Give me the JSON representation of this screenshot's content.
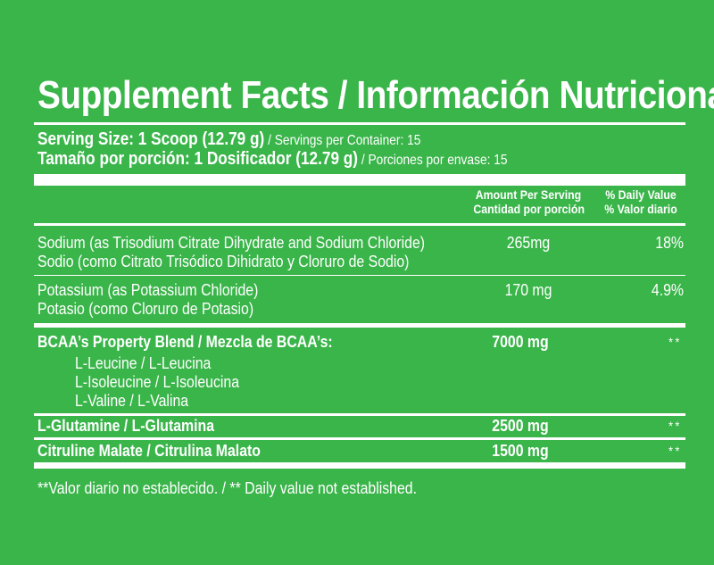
{
  "title": "Supplement Facts / Información Nutricional",
  "serving": {
    "line1_bold": "Serving Size: 1 Scoop (12.79 g)",
    "line1_rest": " / Servings per Container: 15",
    "line2_bold": "Tamaño por porción: 1 Dosificador (12.79 g)",
    "line2_rest": " / Porciones por envase: 15"
  },
  "headers": {
    "amount_en": "Amount Per Serving",
    "amount_es": "Cantidad por porción",
    "dv_en": "% Daily Value",
    "dv_es": "% Valor diario"
  },
  "rows": [
    {
      "name_en": "Sodium (as Trisodium Citrate Dihydrate and Sodium Chloride)",
      "name_es": "Sodio (como Citrato Trisódico Dihidrato y Cloruro de Sodio)",
      "amount": "265mg",
      "dv": "18%"
    },
    {
      "name_en": "Potassium (as Potassium Chloride)",
      "name_es": "Potasio (como Cloruro de Potasio)",
      "amount": "170 mg",
      "dv": "4.9%"
    },
    {
      "name": "BCAA’s Property Blend / Mezcla de BCAA’s:",
      "subitems": [
        "L-Leucine / L-Leucina",
        "L-Isoleucine / L-Isoleucina",
        "L-Valine / L-Valina"
      ],
      "amount": "7000 mg",
      "dv": "**"
    },
    {
      "name": "L-Glutamine / L-Glutamina",
      "amount": "2500 mg",
      "dv": "**"
    },
    {
      "name": "Citruline Malate / Citrulina Malato",
      "amount": "1500 mg",
      "dv": "**"
    }
  ],
  "footnote": "**Valor diario no establecido. / ** Daily value not established."
}
